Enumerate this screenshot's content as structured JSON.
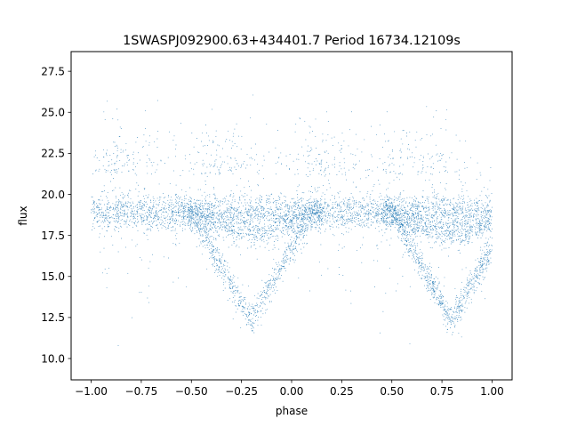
{
  "chart_data": {
    "type": "scatter",
    "title": "1SWASPJ092900.63+434401.7 Period 16734.12109s",
    "xlabel": "phase",
    "ylabel": "flux",
    "xlim": [
      -1.1,
      1.1
    ],
    "ylim": [
      8.7,
      28.7
    ],
    "xticks": [
      -1.0,
      -0.75,
      -0.5,
      -0.25,
      0.0,
      0.25,
      0.5,
      0.75,
      1.0
    ],
    "xtick_labels": [
      "−1.00",
      "−0.75",
      "−0.50",
      "−0.25",
      "0.00",
      "0.25",
      "0.50",
      "0.75",
      "1.00"
    ],
    "yticks": [
      10.0,
      12.5,
      15.0,
      17.5,
      20.0,
      22.5,
      25.0,
      27.5
    ],
    "ytick_labels": [
      "10.0",
      "12.5",
      "15.0",
      "17.5",
      "20.0",
      "22.5",
      "25.0",
      "27.5"
    ],
    "grid": false,
    "point_color": "#1f77b4",
    "series": [
      {
        "components": [
          {
            "kind": "baseline",
            "phase": [
              -1.0,
              1.0
            ],
            "flux_mean": 18.9,
            "flux_spread": 0.55
          },
          {
            "kind": "primary_eclipse",
            "phase": [
              -0.55,
              0.15
            ],
            "center": -0.2,
            "min_flux": 12.3
          },
          {
            "kind": "primary_eclipse",
            "phase": [
              0.45,
              1.0
            ],
            "center": 0.8,
            "min_flux": 12.3
          },
          {
            "kind": "secondary_dip",
            "phase": [
              -0.5,
              0.15
            ],
            "center": -0.2,
            "min_flux": 17.6
          },
          {
            "kind": "secondary_dip",
            "phase": [
              0.5,
              1.0
            ],
            "center": 0.8,
            "min_flux": 17.6
          },
          {
            "kind": "scatter_outliers",
            "flux_range": [
              9.5,
              27.8
            ]
          }
        ]
      }
    ]
  }
}
